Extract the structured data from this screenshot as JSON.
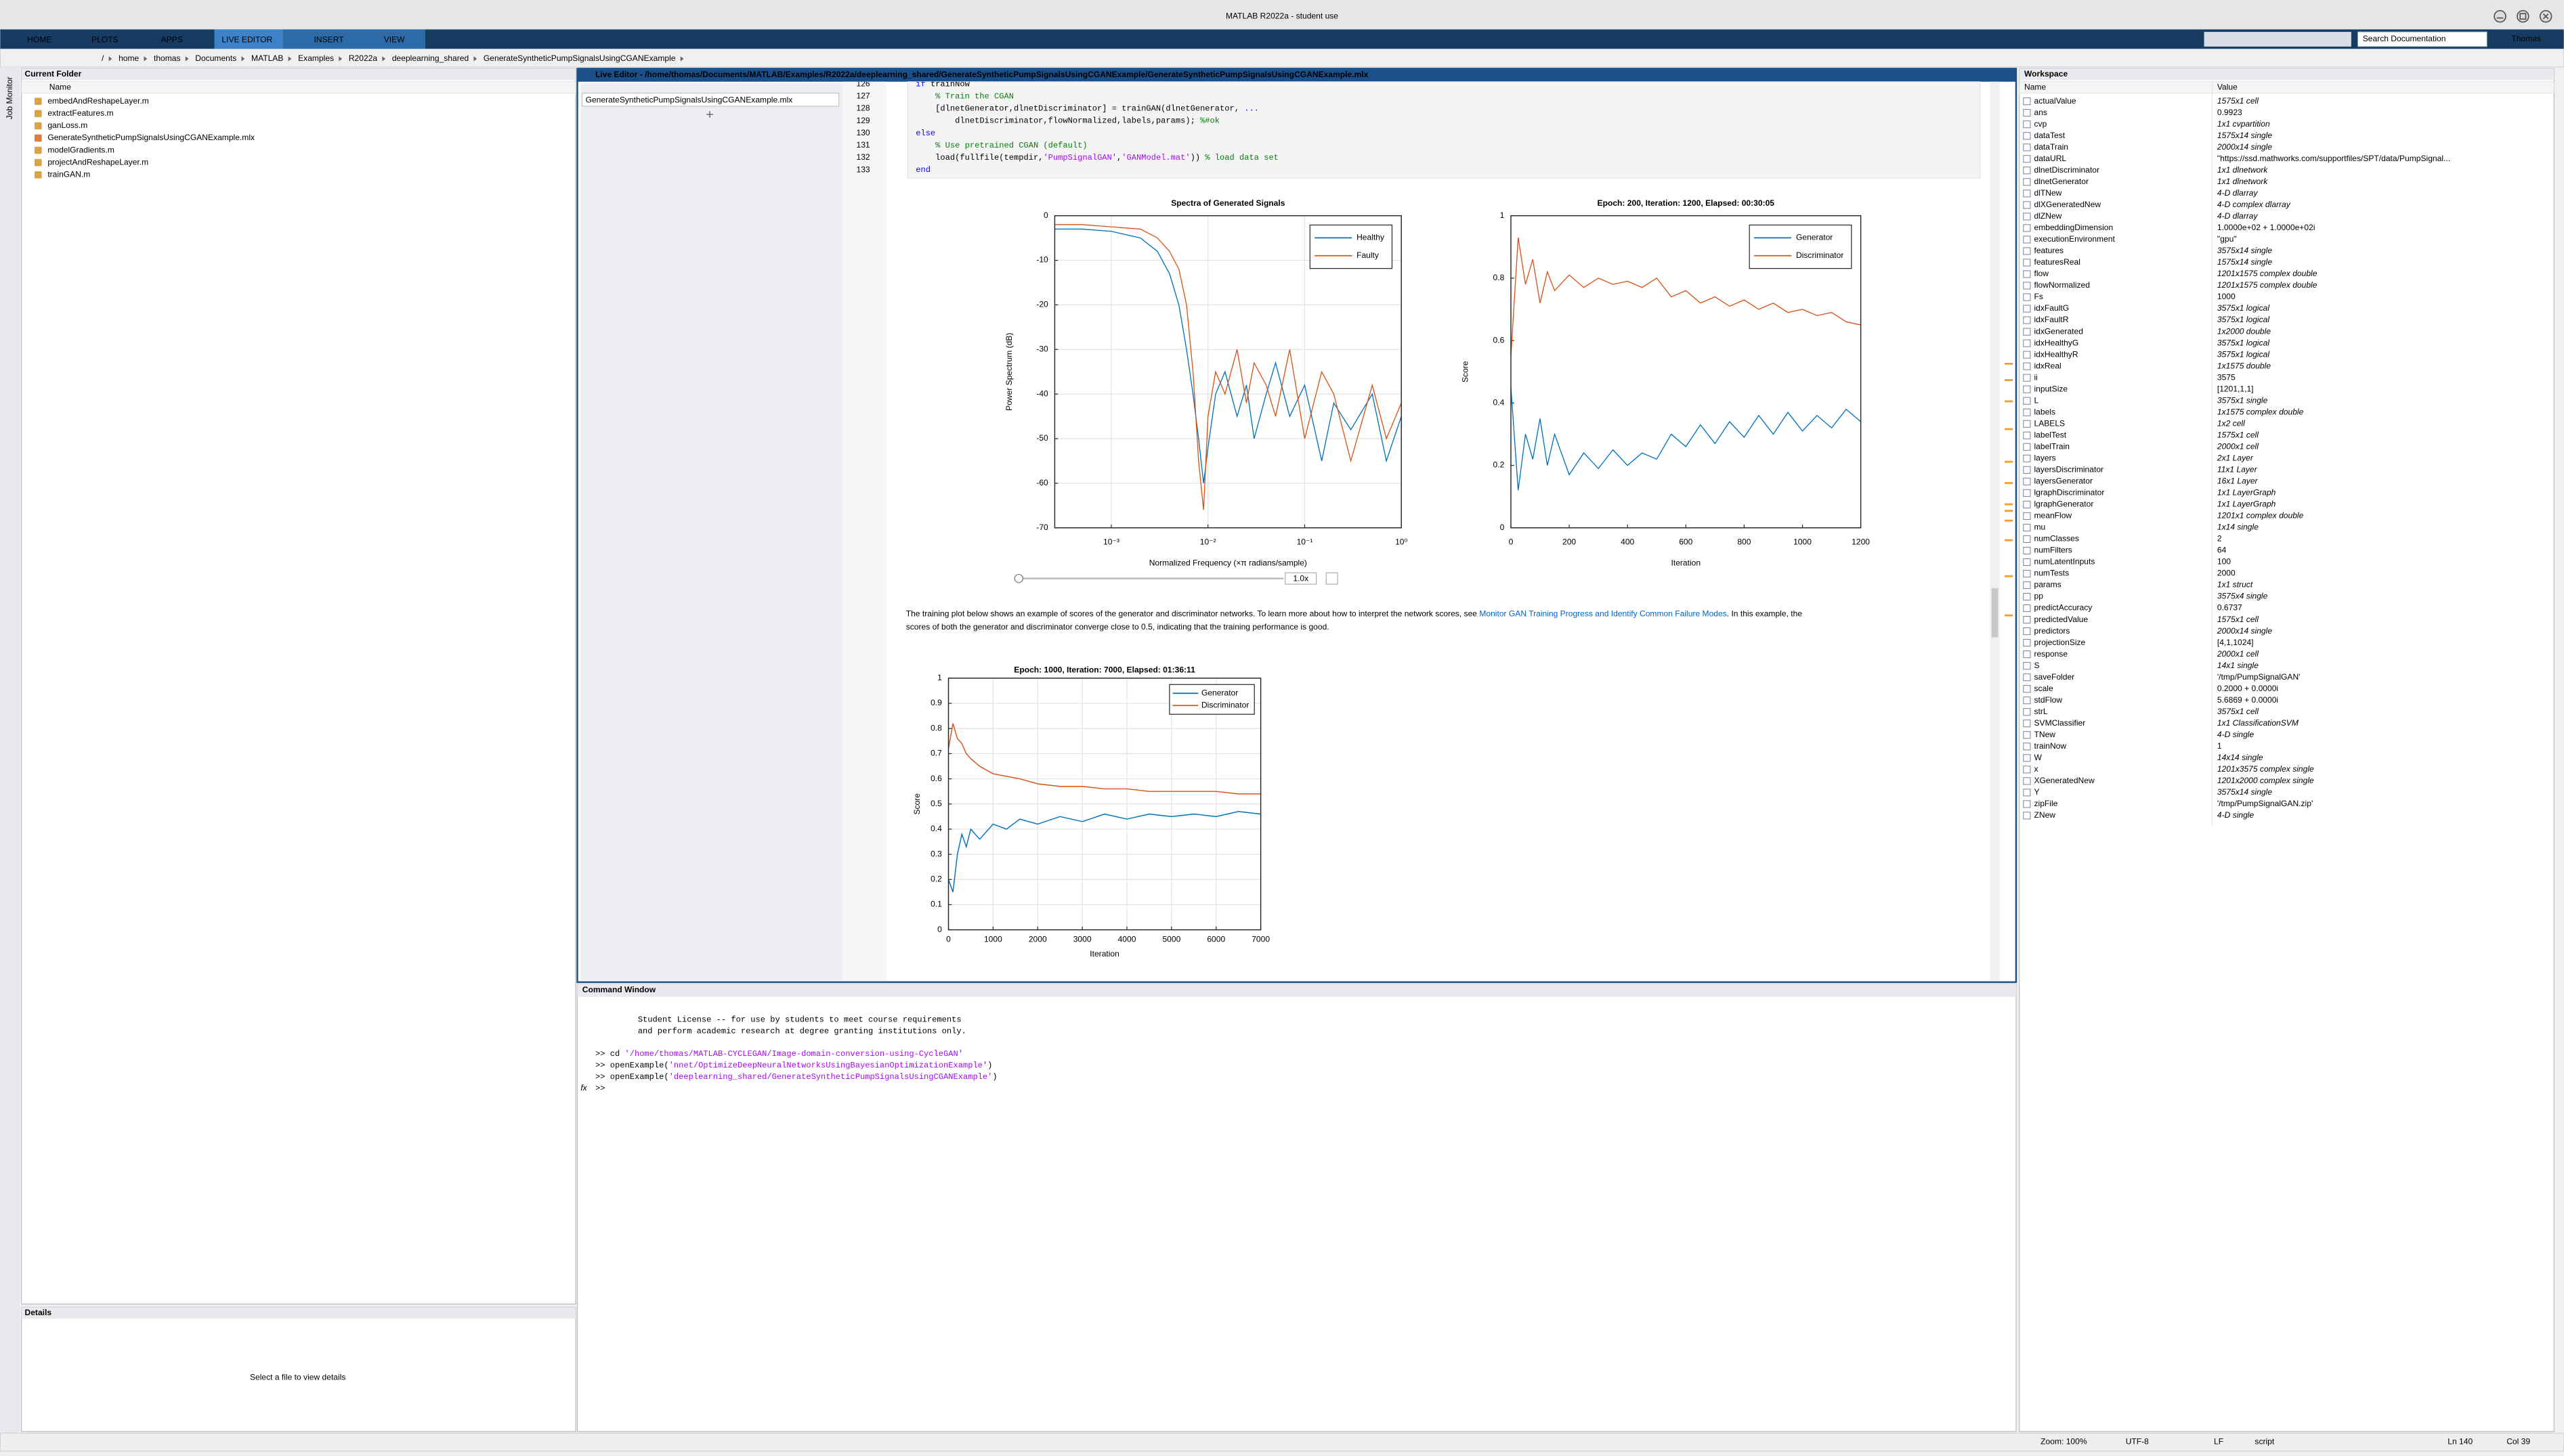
{
  "window": {
    "title": "MATLAB R2022a - student use"
  },
  "toolstrip": {
    "tabs": [
      "HOME",
      "PLOTS",
      "APPS",
      "LIVE EDITOR",
      "INSERT",
      "VIEW"
    ],
    "search": "Search Documentation",
    "user": "Thomas"
  },
  "address": {
    "path": [
      "/",
      "home",
      "thomas",
      "Documents",
      "MATLAB",
      "Examples",
      "R2022a",
      "deeplearning_shared",
      "GenerateSyntheticPumpSignalsUsingCGANExample"
    ]
  },
  "side_panel": {
    "label": "Job Monitor"
  },
  "current_folder": {
    "title": "Current Folder",
    "column": "Name",
    "files": [
      "embedAndReshapeLayer.m",
      "extractFeatures.m",
      "ganLoss.m",
      "GenerateSyntheticPumpSignalsUsingCGANExample.mlx",
      "modelGradients.m",
      "projectAndReshapeLayer.m",
      "trainGAN.m"
    ]
  },
  "details": {
    "title": "Details",
    "message": "Select a file to view details"
  },
  "live_editor": {
    "title": "Live Editor - /home/thomas/Documents/MATLAB/Examples/R2022a/deeplearning_shared/GenerateSyntheticPumpSignalsUsingCGANExample/GenerateSyntheticPumpSignalsUsingCGANExample.mlx",
    "file_tab": "GenerateSyntheticPumpSignalsUsingCGANExample.mlx",
    "code": [
      {
        "number": 126,
        "segments": [
          {
            "text": "if ",
            "color": "#0e00ff"
          },
          {
            "text": "trainNow"
          }
        ]
      },
      {
        "number": 127,
        "segments": [
          {
            "text": "    % Train the CGAN",
            "color": "#028009"
          }
        ]
      },
      {
        "number": 128,
        "segments": [
          {
            "text": "    [dlnetGenerator,dlnetDiscriminator] = trainGAN(dlnetGenerator, "
          },
          {
            "text": "...",
            "color": "#0e00ff"
          }
        ]
      },
      {
        "number": 129,
        "segments": [
          {
            "text": "        dlnetDiscriminator,flowNormalized,labels,params); "
          },
          {
            "text": "%#ok",
            "color": "#028009"
          }
        ]
      },
      {
        "number": 130,
        "segments": [
          {
            "text": "else",
            "color": "#0e00ff"
          }
        ]
      },
      {
        "number": 131,
        "segments": [
          {
            "text": "    % Use pretrained CGAN (default)",
            "color": "#028009"
          }
        ]
      },
      {
        "number": 132,
        "segments": [
          {
            "text": "    load(fullfile(tempdir,"
          },
          {
            "text": "'PumpSignalGAN'",
            "color": "#a709f5"
          },
          {
            "text": ","
          },
          {
            "text": "'GANModel.mat'",
            "color": "#a709f5"
          },
          {
            "text": ")) "
          },
          {
            "text": "% load data set",
            "color": "#028009"
          }
        ]
      },
      {
        "number": 133,
        "segments": [
          {
            "text": "end",
            "color": "#0e00ff"
          }
        ]
      }
    ],
    "playback_speed": "1.0x",
    "paragraph": [
      [
        {
          "text": "The training plot below shows an example of scores of the generator and discriminator networks. To learn more about how to interpret the network scores, see "
        },
        {
          "text": "Monitor GAN Training Progress and Identify Common Failure Modes",
          "color": "#0064c8"
        },
        {
          "text": ". In this example, the"
        }
      ],
      [
        {
          "text": "scores of both the generator and discriminator converge close to 0.5, indicating that the training performance is good."
        }
      ]
    ]
  },
  "chart_data": [
    {
      "type": "line",
      "title": "Spectra of Generated Signals",
      "xlabel": "Normalized Frequency (×π radians/sample)",
      "ylabel": "Power Spectrum (dB)",
      "xscale": "log",
      "grid": true,
      "legend": "northeast",
      "x": [
        0.00026,
        0.0005,
        0.001,
        0.002,
        0.003,
        0.004,
        0.005,
        0.006,
        0.007,
        0.008,
        0.009,
        0.01,
        0.012,
        0.015,
        0.02,
        0.025,
        0.03,
        0.04,
        0.05,
        0.07,
        0.1,
        0.15,
        0.2,
        0.3,
        0.5,
        0.7,
        1
      ],
      "series": [
        {
          "name": "Healthy",
          "color": "#0072bd",
          "values": [
            -3,
            -3,
            -3.5,
            -5,
            -8,
            -13,
            -20,
            -30,
            -40,
            -50,
            -60,
            -52,
            -40,
            -35,
            -45,
            -38,
            -50,
            -40,
            -33,
            -45,
            -38,
            -55,
            -42,
            -48,
            -40,
            -55,
            -45
          ]
        },
        {
          "name": "Faulty",
          "color": "#d95319",
          "values": [
            -2,
            -2,
            -2.5,
            -3,
            -5,
            -8,
            -12,
            -20,
            -35,
            -55,
            -66,
            -45,
            -35,
            -40,
            -30,
            -42,
            -33,
            -38,
            -45,
            -30,
            -50,
            -35,
            -40,
            -55,
            -38,
            -50,
            -42
          ]
        }
      ],
      "xlim": [
        0.00026,
        1
      ],
      "xticks": [
        {
          "value": 0.001,
          "label": "10⁻³"
        },
        {
          "value": 0.01,
          "label": "10⁻²"
        },
        {
          "value": 0.1,
          "label": "10⁻¹"
        },
        {
          "value": 1,
          "label": "10⁰"
        }
      ],
      "ylim": [
        -70,
        0
      ],
      "yticks": [
        0,
        -10,
        -20,
        -30,
        -40,
        -50,
        -60,
        -70
      ]
    },
    {
      "type": "line",
      "title": "Epoch: 200, Iteration: 1200, Elapsed: 00:30:05",
      "xlabel": "Iteration",
      "ylabel": "Score",
      "grid": false,
      "legend": "northeast",
      "x": [
        0,
        25,
        50,
        75,
        100,
        125,
        150,
        200,
        250,
        300,
        350,
        400,
        450,
        500,
        550,
        600,
        650,
        700,
        750,
        800,
        850,
        900,
        950,
        1000,
        1050,
        1100,
        1150,
        1200
      ],
      "series": [
        {
          "name": "Generator",
          "color": "#0072bd",
          "values": [
            0.45,
            0.12,
            0.3,
            0.22,
            0.35,
            0.2,
            0.3,
            0.17,
            0.24,
            0.19,
            0.25,
            0.2,
            0.24,
            0.22,
            0.3,
            0.26,
            0.33,
            0.27,
            0.34,
            0.29,
            0.36,
            0.3,
            0.37,
            0.31,
            0.36,
            0.32,
            0.38,
            0.34
          ]
        },
        {
          "name": "Discriminator",
          "color": "#d95319",
          "values": [
            0.55,
            0.93,
            0.78,
            0.86,
            0.72,
            0.82,
            0.76,
            0.81,
            0.77,
            0.8,
            0.78,
            0.79,
            0.77,
            0.8,
            0.74,
            0.76,
            0.72,
            0.74,
            0.71,
            0.73,
            0.7,
            0.72,
            0.69,
            0.7,
            0.68,
            0.69,
            0.66,
            0.65
          ]
        }
      ],
      "xlim": [
        0,
        1200
      ],
      "xticks": [
        0,
        200,
        400,
        600,
        800,
        1000,
        1200
      ],
      "ylim": [
        0,
        1
      ],
      "yticks": [
        0,
        0.2,
        0.4,
        0.6,
        0.8,
        1
      ]
    },
    {
      "type": "line",
      "title": "Epoch: 1000, Iteration: 7000, Elapsed: 01:36:11",
      "xlabel": "Iteration",
      "ylabel": "Score",
      "grid": true,
      "legend": "northeast",
      "x": [
        0,
        100,
        200,
        300,
        400,
        500,
        700,
        1000,
        1300,
        1600,
        2000,
        2500,
        3000,
        3500,
        4000,
        4500,
        5000,
        5500,
        6000,
        6500,
        7000
      ],
      "series": [
        {
          "name": "Generator",
          "color": "#0072bd",
          "values": [
            0.2,
            0.15,
            0.3,
            0.38,
            0.33,
            0.4,
            0.36,
            0.42,
            0.4,
            0.44,
            0.42,
            0.45,
            0.43,
            0.46,
            0.44,
            0.46,
            0.45,
            0.46,
            0.45,
            0.47,
            0.46
          ]
        },
        {
          "name": "Discriminator",
          "color": "#d95319",
          "values": [
            0.72,
            0.82,
            0.76,
            0.74,
            0.7,
            0.68,
            0.65,
            0.62,
            0.61,
            0.6,
            0.58,
            0.57,
            0.57,
            0.56,
            0.56,
            0.55,
            0.55,
            0.55,
            0.55,
            0.54,
            0.54
          ]
        }
      ],
      "xlim": [
        0,
        7000
      ],
      "xticks": [
        0,
        1000,
        2000,
        3000,
        4000,
        5000,
        6000,
        7000
      ],
      "ylim": [
        0,
        1
      ],
      "yticks": [
        0,
        0.1,
        0.2,
        0.3,
        0.4,
        0.5,
        0.6,
        0.7,
        0.8,
        0.9,
        1
      ]
    }
  ],
  "command_window": {
    "title": "Command Window",
    "prompt_icon": "fx",
    "lines": [
      [
        {
          "text": "Student License -- for use by students to meet course requirements"
        }
      ],
      [
        {
          "text": "and perform academic research at degree granting institutions only."
        }
      ],
      [
        {
          "text": ">> cd "
        },
        {
          "text": "'/home/thomas/MATLAB-CYCLEGAN/Image-domain-conversion-using-CycleGAN'",
          "color": "#a709f5"
        }
      ],
      [
        {
          "text": ">> openExample("
        },
        {
          "text": "'nnet/OptimizeDeepNeuralNetworksUsingBayesianOptimizationExample'",
          "color": "#a709f5"
        },
        {
          "text": ")"
        }
      ],
      [
        {
          "text": ">> openExample("
        },
        {
          "text": "'deeplearning_shared/GenerateSyntheticPumpSignalsUsingCGANExample'",
          "color": "#a709f5"
        },
        {
          "text": ")"
        }
      ],
      [
        {
          "text": ">>"
        }
      ]
    ]
  },
  "workspace": {
    "title": "Workspace",
    "columns": [
      "Name",
      "Value"
    ],
    "rows": [
      [
        "actualValue",
        "1575x1 cell"
      ],
      [
        "ans",
        "0.9923"
      ],
      [
        "cvp",
        "1x1 cvpartition"
      ],
      [
        "dataTest",
        "1575x14 single"
      ],
      [
        "dataTrain",
        "2000x14 single"
      ],
      [
        "dataURL",
        "\"https://ssd.mathworks.com/supportfiles/SPT/data/PumpSignal..."
      ],
      [
        "dlnetDiscriminator",
        "1x1 dlnetwork"
      ],
      [
        "dlnetGenerator",
        "1x1 dlnetwork"
      ],
      [
        "dlTNew",
        "4-D dlarray"
      ],
      [
        "dlXGeneratedNew",
        "4-D complex dlarray"
      ],
      [
        "dlZNew",
        "4-D dlarray"
      ],
      [
        "embeddingDimension",
        "1.0000e+02 + 1.0000e+02i"
      ],
      [
        "executionEnvironment",
        "\"gpu\""
      ],
      [
        "features",
        "3575x14 single"
      ],
      [
        "featuresReal",
        "1575x14 single"
      ],
      [
        "flow",
        "1201x1575 complex double"
      ],
      [
        "flowNormalized",
        "1201x1575 complex double"
      ],
      [
        "Fs",
        "1000"
      ],
      [
        "idxFaultG",
        "3575x1 logical"
      ],
      [
        "idxFaultR",
        "3575x1 logical"
      ],
      [
        "idxGenerated",
        "1x2000 double"
      ],
      [
        "idxHealthyG",
        "3575x1 logical"
      ],
      [
        "idxHealthyR",
        "3575x1 logical"
      ],
      [
        "idxReal",
        "1x1575 double"
      ],
      [
        "ii",
        "3575"
      ],
      [
        "inputSize",
        "[1201,1,1]"
      ],
      [
        "L",
        "3575x1 single"
      ],
      [
        "labels",
        "1x1575 complex double"
      ],
      [
        "LABELS",
        "1x2 cell"
      ],
      [
        "labelTest",
        "1575x1 cell"
      ],
      [
        "labelTrain",
        "2000x1 cell"
      ],
      [
        "layers",
        "2x1 Layer"
      ],
      [
        "layersDiscriminator",
        "11x1 Layer"
      ],
      [
        "layersGenerator",
        "16x1 Layer"
      ],
      [
        "lgraphDiscriminator",
        "1x1 LayerGraph"
      ],
      [
        "lgraphGenerator",
        "1x1 LayerGraph"
      ],
      [
        "meanFlow",
        "1201x1 complex double"
      ],
      [
        "mu",
        "1x14 single"
      ],
      [
        "numClasses",
        "2"
      ],
      [
        "numFilters",
        "64"
      ],
      [
        "numLatentInputs",
        "100"
      ],
      [
        "numTests",
        "2000"
      ],
      [
        "params",
        "1x1 struct"
      ],
      [
        "pp",
        "3575x4 single"
      ],
      [
        "predictAccuracy",
        "0.6737"
      ],
      [
        "predictedValue",
        "1575x1 cell"
      ],
      [
        "predictors",
        "2000x14 single"
      ],
      [
        "projectionSize",
        "[4,1,1024]"
      ],
      [
        "response",
        "2000x1 cell"
      ],
      [
        "S",
        "14x1 single"
      ],
      [
        "saveFolder",
        "'/tmp/PumpSignalGAN'"
      ],
      [
        "scale",
        "0.2000 + 0.0000i"
      ],
      [
        "stdFlow",
        "5.6869 + 0.0000i"
      ],
      [
        "strL",
        "3575x1 cell"
      ],
      [
        "SVMClassifier",
        "1x1 ClassificationSVM"
      ],
      [
        "TNew",
        "4-D single"
      ],
      [
        "trainNow",
        "1"
      ],
      [
        "W",
        "14x14 single"
      ],
      [
        "x",
        "1201x3575 complex single"
      ],
      [
        "XGeneratedNew",
        "1201x2000 complex single"
      ],
      [
        "Y",
        "3575x14 single"
      ],
      [
        "zipFile",
        "'/tmp/PumpSignalGAN.zip'"
      ],
      [
        "ZNew",
        "4-D single"
      ]
    ]
  },
  "status_bar": {
    "zoom": "Zoom: 100%",
    "encoding": "UTF-8",
    "line_ending": "LF",
    "mode": "script",
    "line": "Ln 140",
    "column": "Col 39"
  }
}
